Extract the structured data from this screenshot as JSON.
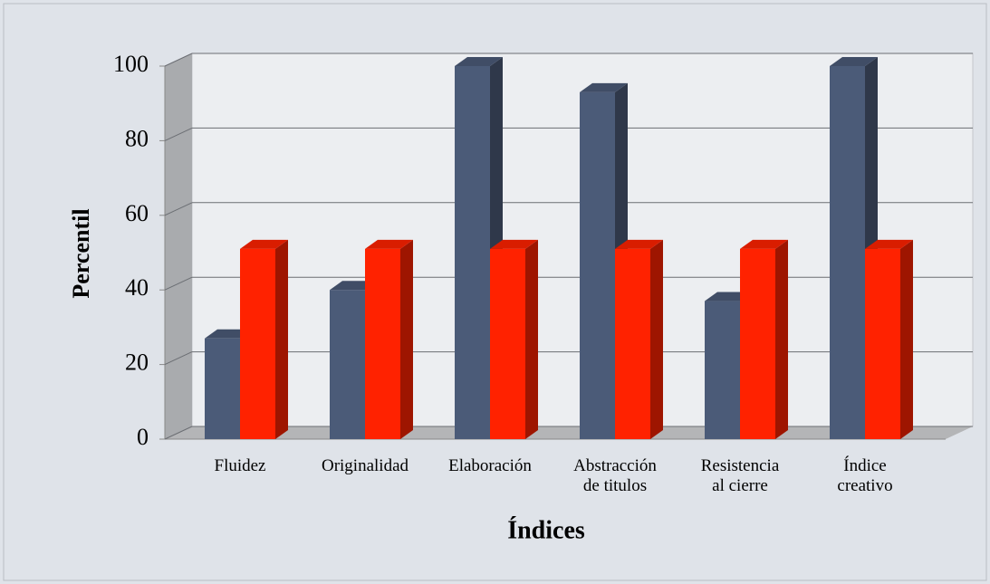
{
  "chart_data": {
    "type": "bar3d",
    "categories": [
      "Fluidez",
      "Originalidad",
      "Elaboración",
      "Abstracción de titulos",
      "Resistencia al cierre",
      "Índice creativo"
    ],
    "series": [
      {
        "color": "#4b5b78",
        "values": [
          27,
          40,
          100,
          93,
          37,
          100
        ]
      },
      {
        "color": "#ff2200",
        "values": [
          51,
          51,
          51,
          51,
          51,
          51
        ]
      }
    ],
    "ylim": [
      0,
      100
    ],
    "yticks": [
      0,
      20,
      40,
      60,
      80,
      100
    ],
    "ylabel": "Percentil",
    "xlabel": "Índices",
    "grid": true
  }
}
